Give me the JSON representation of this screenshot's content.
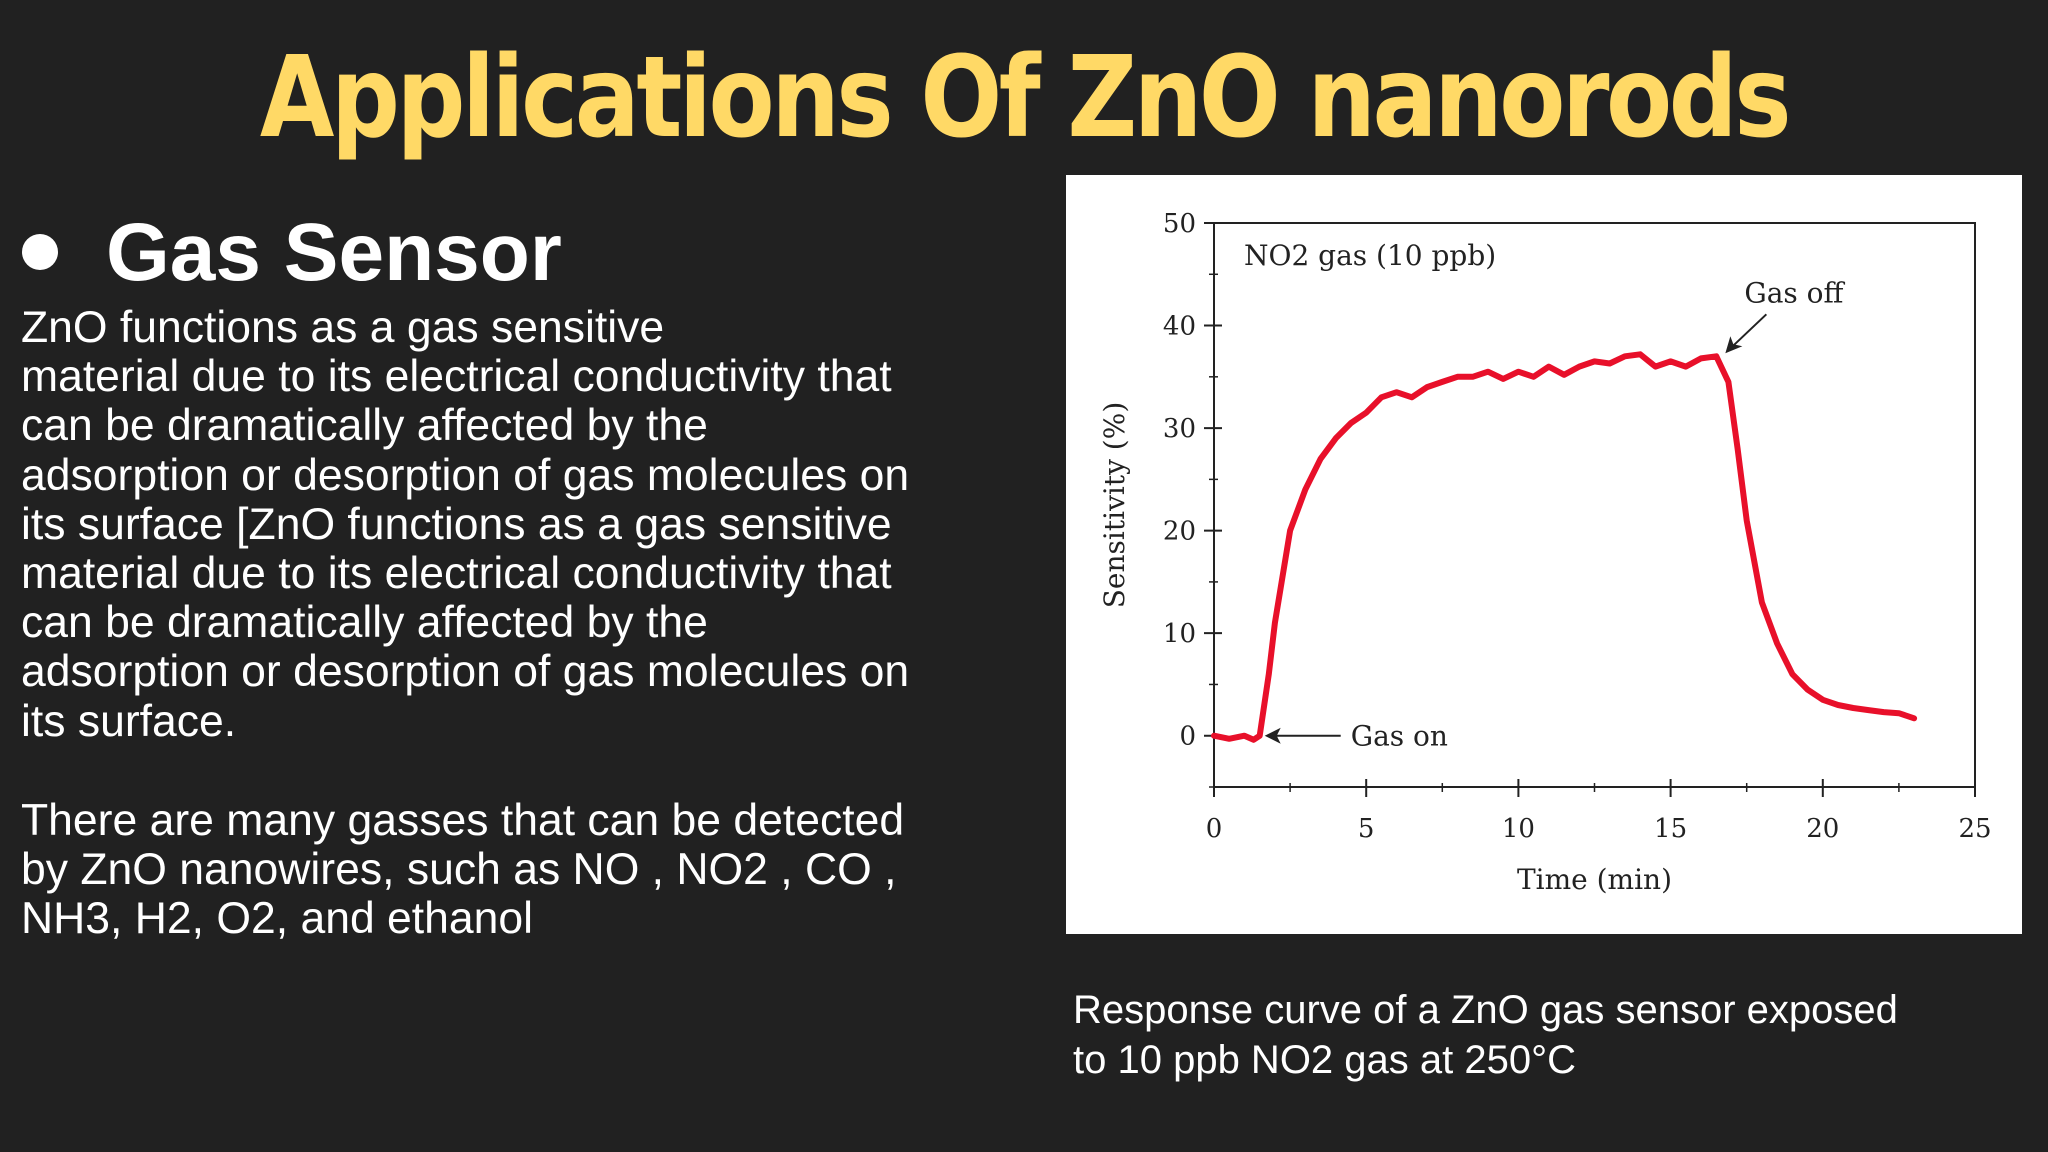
{
  "slide": {
    "title": "Applications Of ZnO nanorods",
    "heading": "Gas Sensor",
    "paragraph1": "ZnO functions as a gas sensitive\nmaterial due to its electrical conductivity that\ncan be dramatically affected by the\nadsorption or desorption of gas molecules on\nits surface [ZnO functions as a gas sensitive\nmaterial due to its electrical conductivity that\ncan be dramatically affected by the\nadsorption or desorption of gas molecules on\nits surface.",
    "paragraph2": "There are many gasses that can be detected\nby ZnO nanowires, such as NO , NO2 , CO ,\nNH3, H2, O2, and ethanol",
    "caption": "Response curve of a ZnO gas sensor exposed\nto 10 ppb NO2 gas at 250°C",
    "colors": {
      "background": "#212121",
      "title": "#ffd966",
      "text": "#ffffff",
      "curve": "#e8102a"
    }
  },
  "chart_data": {
    "type": "line",
    "title": "NO2 gas (10 ppb)",
    "xlabel": "Time (min)",
    "ylabel": "Sensitivity (%)",
    "xlim": [
      0,
      25
    ],
    "ylim": [
      -5,
      50
    ],
    "xticks": [
      0,
      5,
      10,
      15,
      20,
      25
    ],
    "yticks": [
      0,
      10,
      20,
      30,
      40,
      50
    ],
    "annotations": [
      {
        "text": "Gas on",
        "x": 1.6,
        "y": 0
      },
      {
        "text": "Gas off",
        "x": 16.7,
        "y": 37
      }
    ],
    "series": [
      {
        "color": "#e8102a",
        "x": [
          0,
          0.5,
          1.0,
          1.3,
          1.5,
          1.8,
          2.0,
          2.5,
          3.0,
          3.5,
          4.0,
          4.5,
          5.0,
          5.5,
          6.0,
          6.5,
          7.0,
          7.5,
          8.0,
          8.5,
          9.0,
          9.5,
          10.0,
          10.5,
          11.0,
          11.5,
          12.0,
          12.5,
          13.0,
          13.5,
          14.0,
          14.5,
          15.0,
          15.5,
          16.0,
          16.5,
          16.9,
          17.2,
          17.5,
          18.0,
          18.5,
          19.0,
          19.5,
          20.0,
          20.5,
          21.0,
          21.5,
          22.0,
          22.5,
          23.0
        ],
        "values": [
          0,
          -0.3,
          0,
          -0.4,
          0,
          6,
          11,
          20,
          24,
          27,
          29,
          30.5,
          31.5,
          33,
          33.5,
          33,
          34,
          34.5,
          35,
          35,
          35.5,
          34.8,
          35.5,
          35,
          36,
          35.2,
          36,
          36.5,
          36.3,
          37,
          37.2,
          36,
          36.5,
          36,
          36.8,
          37,
          34.5,
          28,
          21,
          13,
          9,
          6,
          4.5,
          3.5,
          3,
          2.7,
          2.5,
          2.3,
          2.2,
          1.7
        ]
      }
    ]
  }
}
